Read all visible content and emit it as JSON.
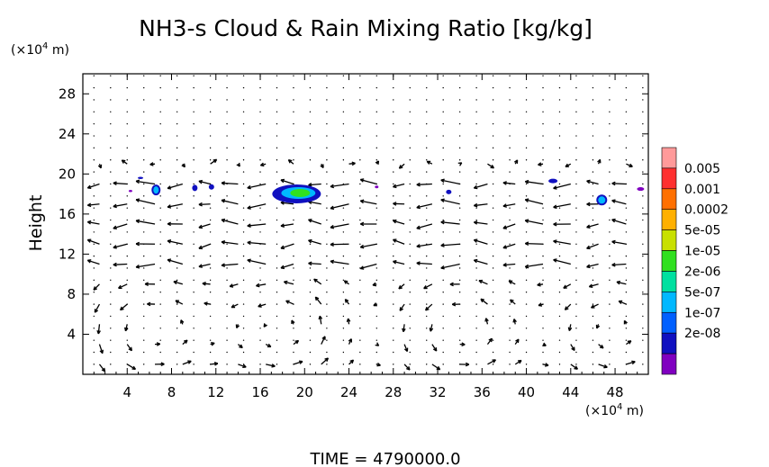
{
  "chart_data": {
    "type": "heatmap",
    "title": "NH3-s Cloud & Rain Mixing Ratio [kg/kg]",
    "ylabel": "Height",
    "y_unit_label": "(×10",
    "y_unit_exp": "4",
    "y_unit_tail": " m)",
    "x_unit_label": "(×10",
    "x_unit_exp": "4",
    "x_unit_tail": " m)",
    "xlim": [
      0,
      51
    ],
    "ylim": [
      0,
      30
    ],
    "x_ticks": [
      "4",
      "8",
      "12",
      "16",
      "20",
      "24",
      "28",
      "32",
      "36",
      "40",
      "44",
      "48"
    ],
    "y_ticks": [
      "4",
      "8",
      "12",
      "16",
      "20",
      "24",
      "28"
    ],
    "colorbar": {
      "labels": [
        "0.005",
        "0.001",
        "0.0002",
        "5e-05",
        "1e-05",
        "2e-06",
        "5e-07",
        "1e-07",
        "2e-08"
      ],
      "colors": [
        "#ff9a9a",
        "#ff3030",
        "#ff7000",
        "#ffb000",
        "#c8e000",
        "#30e020",
        "#00e0a0",
        "#00b8ff",
        "#0060ff",
        "#1010c0",
        "#8000c0"
      ]
    },
    "cloud_patches": [
      {
        "x": 4.3,
        "y": 18.3,
        "level": "2e-08"
      },
      {
        "x": 5.2,
        "y": 19.6,
        "level": "1e-07"
      },
      {
        "x": 6.6,
        "y": 18.4,
        "level": "5e-07"
      },
      {
        "x": 10.1,
        "y": 18.6,
        "level": "1e-07"
      },
      {
        "x": 11.6,
        "y": 18.7,
        "level": "1e-07"
      },
      {
        "x": 19.0,
        "y": 18.6,
        "level": "1e-07"
      },
      {
        "x": 19.6,
        "y": 18.1,
        "level": "2e-06"
      },
      {
        "x": 26.5,
        "y": 18.7,
        "level": "2e-08"
      },
      {
        "x": 33.0,
        "y": 18.2,
        "level": "1e-07"
      },
      {
        "x": 42.4,
        "y": 19.3,
        "level": "1e-07"
      },
      {
        "x": 46.8,
        "y": 17.4,
        "level": "5e-07"
      },
      {
        "x": 50.3,
        "y": 18.5,
        "level": "2e-08"
      }
    ]
  },
  "footer": {
    "time_label": "TIME  =  4790000.0"
  }
}
